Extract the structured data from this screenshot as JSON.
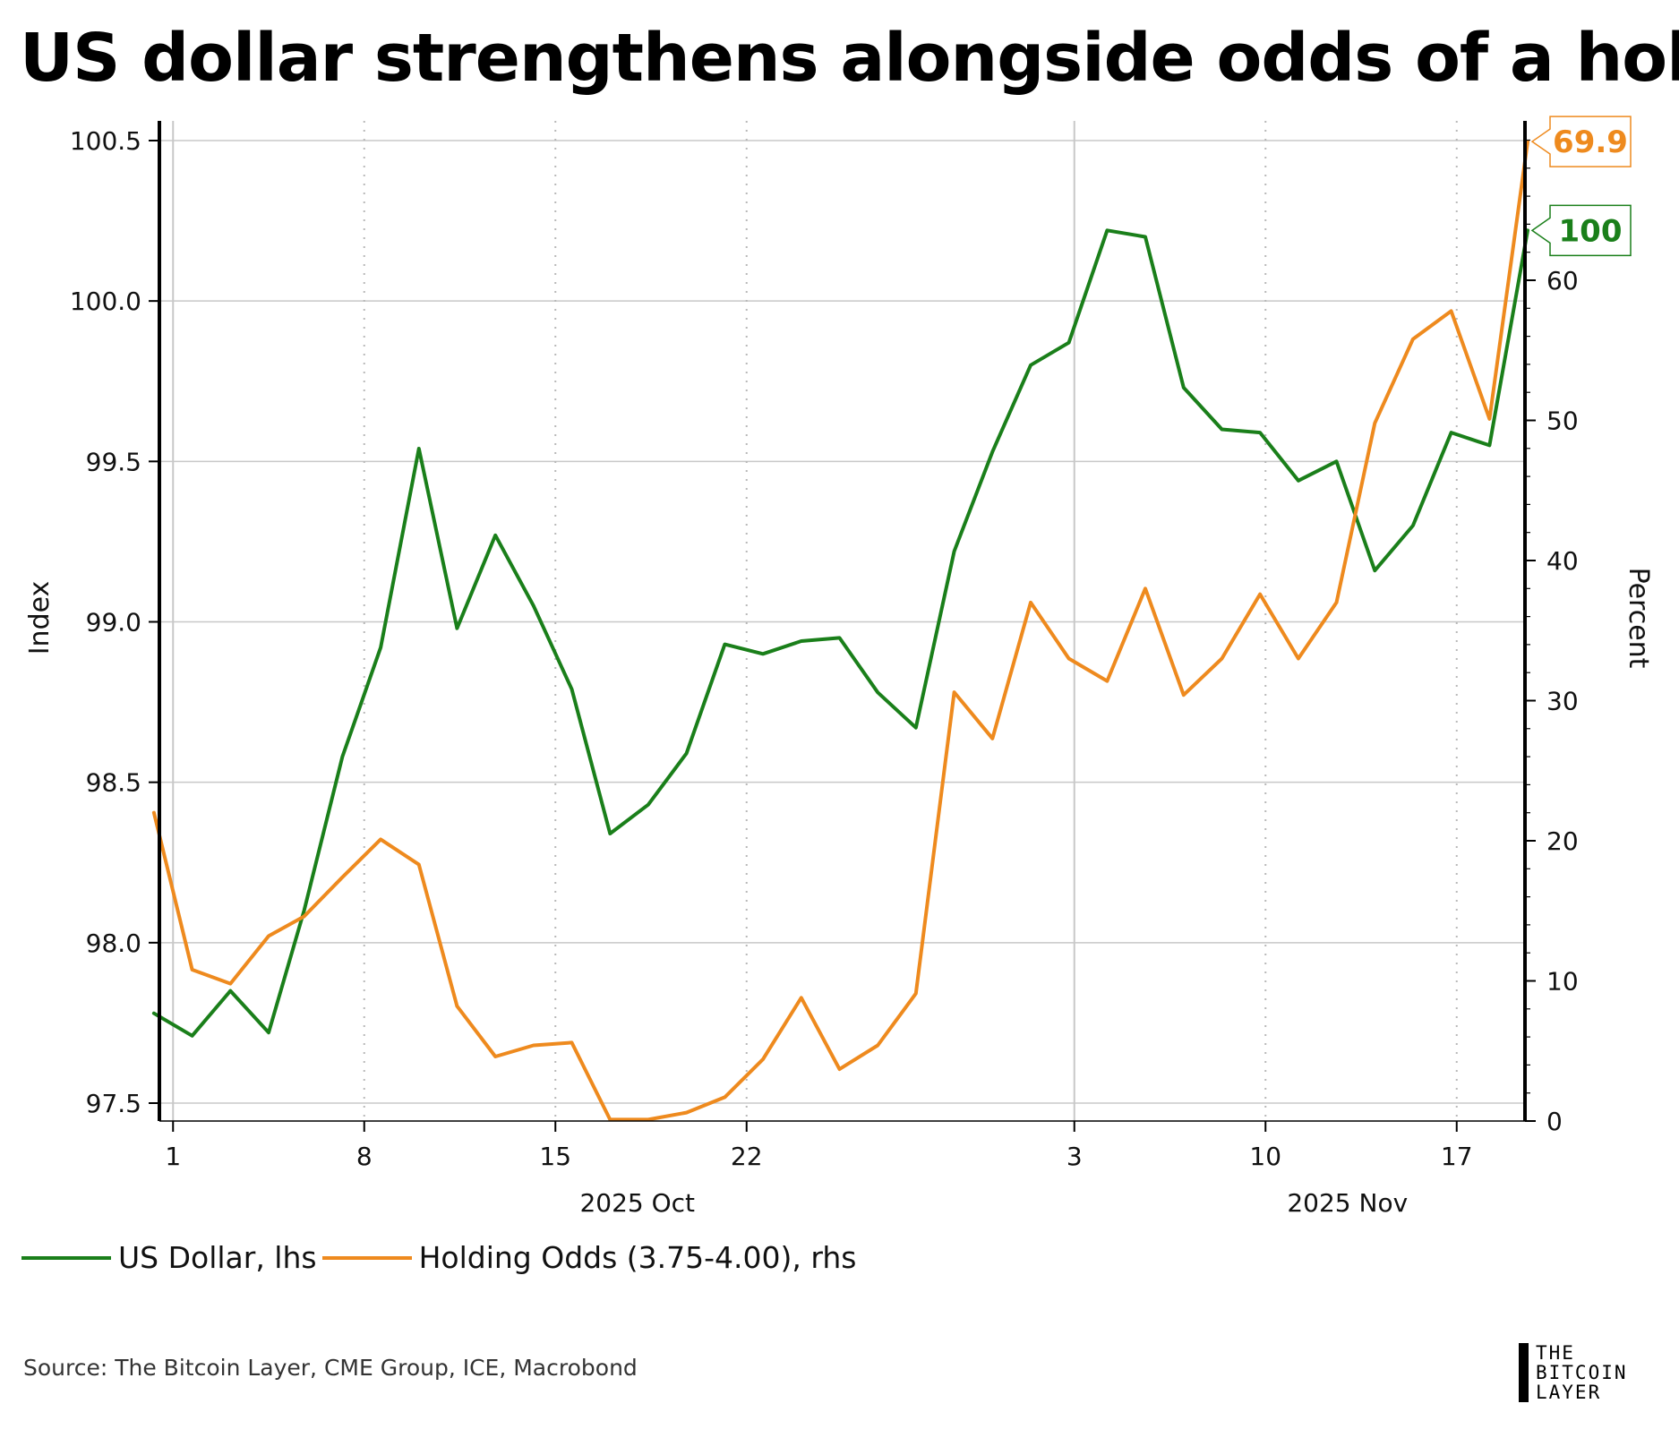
{
  "title": "US dollar strengthens alongside odds of a hold",
  "source": "Source: The Bitcoin Layer, CME Group, ICE, Macrobond",
  "logo": {
    "line1": "THE",
    "line2": "BITCOIN",
    "line3": "LAYER"
  },
  "colors": {
    "usd": "#1a7f1a",
    "odds": "#ee8a1e"
  },
  "legend": {
    "usd": "US Dollar, lhs",
    "odds": "Holding Odds (3.75-4.00), rhs"
  },
  "chart_data": {
    "type": "line",
    "title": "US dollar strengthens alongside odds of a hold",
    "ylabel_left": "Index",
    "ylabel_right": "Percent",
    "left_ylim": [
      97.45,
      100.55
    ],
    "right_ylim": [
      0,
      72
    ],
    "left_ticks": [
      "97.5",
      "98.0",
      "98.5",
      "99.0",
      "99.5",
      "100.0",
      "100.5"
    ],
    "right_ticks": [
      "0",
      "10",
      "20",
      "30",
      "40",
      "50",
      "60"
    ],
    "x_range": [
      0.5,
      50.5
    ],
    "x_ticks": [
      {
        "day": 1,
        "label": "1"
      },
      {
        "day": 8,
        "label": "8"
      },
      {
        "day": 15,
        "label": "15"
      },
      {
        "day": 22,
        "label": "22"
      },
      {
        "day": 34,
        "label": "3"
      },
      {
        "day": 41,
        "label": "10"
      },
      {
        "day": 48,
        "label": "17"
      }
    ],
    "month_labels": [
      {
        "day": 18,
        "label": "2025 Oct"
      },
      {
        "day": 44,
        "label": "2025 Nov"
      }
    ],
    "series": [
      {
        "name": "US Dollar, lhs",
        "axis": "left",
        "x": [
          0.3,
          1.7,
          3.1,
          4.5,
          5.8,
          7.2,
          8.6,
          10,
          11.4,
          12.8,
          14.2,
          15.6,
          17,
          18.4,
          19.8,
          21.2,
          22.6,
          24,
          25.4,
          26.8,
          28.2,
          29.6,
          31,
          32.4,
          33.8,
          35.2,
          36.6,
          38,
          39.4,
          40.8,
          42.2,
          43.6,
          45,
          46.4,
          47.8,
          49.2,
          50.6
        ],
        "values": [
          97.78,
          97.71,
          97.85,
          97.72,
          98.1,
          98.58,
          98.92,
          99.54,
          98.98,
          99.27,
          99.05,
          98.79,
          98.34,
          98.43,
          98.59,
          98.93,
          98.9,
          98.94,
          98.95,
          98.78,
          98.67,
          99.22,
          99.53,
          99.8,
          99.87,
          100.22,
          100.2,
          99.73,
          99.6,
          99.59,
          99.44,
          99.5,
          99.16,
          99.3,
          99.59,
          99.55,
          100.22
        ]
      },
      {
        "name": "Holding Odds (3.75-4.00), rhs",
        "axis": "right",
        "x": [
          0.3,
          1.7,
          3.1,
          4.5,
          5.8,
          7.2,
          8.6,
          10,
          11.4,
          12.8,
          14.2,
          15.6,
          17,
          18.4,
          19.8,
          21.2,
          22.6,
          24,
          25.4,
          26.8,
          28.2,
          29.6,
          31,
          32.4,
          33.8,
          35.2,
          36.6,
          38,
          39.4,
          40.8,
          42.2,
          43.6,
          45,
          46.4,
          47.8,
          49.2,
          50.6
        ],
        "values": [
          22,
          10.8,
          9.8,
          13.2,
          14.6,
          17.4,
          20.1,
          18.3,
          8.2,
          4.6,
          5.4,
          5.6,
          0.1,
          0.1,
          0.6,
          1.7,
          4.4,
          8.8,
          3.7,
          5.4,
          9.1,
          30.6,
          27.3,
          37,
          33,
          31.4,
          38,
          30.4,
          33,
          37.6,
          33,
          37,
          49.8,
          55.8,
          57.8,
          50.1,
          69.9
        ]
      }
    ],
    "end_labels": [
      {
        "series": "Holding Odds (3.75-4.00), rhs",
        "text": "69.9"
      },
      {
        "series": "US Dollar, lhs",
        "text": "100"
      }
    ]
  }
}
